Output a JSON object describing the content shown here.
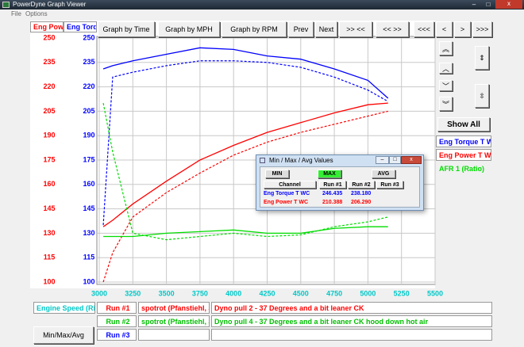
{
  "window": {
    "title": "PowerDyne Graph Viewer",
    "menu": [
      "File",
      "Options"
    ]
  },
  "toolbar": [
    "Graph by Time",
    "Graph by MPH",
    "Graph by RPM",
    "Prev",
    "Next",
    ">> <<",
    "<< >>",
    "<<<",
    "<",
    ">",
    ">>>"
  ],
  "axis_headers": [
    {
      "label": "Eng Powe",
      "color": "#ff0000"
    },
    {
      "label": "Eng Torq",
      "color": "#0000ff"
    }
  ],
  "chart_data": {
    "type": "line",
    "x": [
      3030,
      3100,
      3250,
      3500,
      3750,
      4000,
      4250,
      4500,
      4750,
      5000,
      5150
    ],
    "xlim": [
      3000,
      5500
    ],
    "xticks": [
      3000,
      3250,
      3500,
      3750,
      4000,
      4250,
      4500,
      4750,
      5000,
      5250,
      5500
    ],
    "ylim": [
      100,
      250
    ],
    "yticks": [
      100,
      115,
      130,
      145,
      160,
      175,
      190,
      205,
      220,
      235,
      250
    ],
    "y2lim": [
      100,
      250
    ],
    "y2ticks": [
      100,
      115,
      130,
      145,
      160,
      175,
      190,
      205,
      220,
      235,
      250
    ],
    "grid": true,
    "series": [
      {
        "name": "Eng Torque T WC",
        "color": "#0000ff",
        "axis": "y2",
        "runs": [
          {
            "values": [
              231,
              233,
              236,
              240,
              244,
              243,
              239,
              237,
              231,
              224,
              213
            ],
            "dashed": false
          },
          {
            "values": [
              135,
              226,
              229,
              233,
              236,
              236,
              235,
              232,
              226,
              218,
              211
            ],
            "dashed": true
          }
        ]
      },
      {
        "name": "Eng Power T WC",
        "color": "#ff0000",
        "runs": [
          {
            "values": [
              134,
              138,
              148,
              162,
              175,
              184,
              192,
              198,
              204,
              209,
              210
            ],
            "dashed": false
          },
          {
            "values": [
              100,
              118,
              140,
              155,
              167,
              178,
              186,
              192,
              197,
              202,
              205
            ],
            "dashed": true
          }
        ]
      },
      {
        "name": "AFR 1 (Ratio)",
        "color": "#00dd00",
        "runs": [
          {
            "values": [
              128,
              128,
              128,
              130,
              131,
              132,
              130,
              130,
              133,
              134,
              134
            ],
            "dashed": false
          },
          {
            "values": [
              210,
              180,
              130,
              126,
              128,
              130,
              128,
              129,
              134,
              137,
              140
            ],
            "dashed": true
          }
        ]
      }
    ]
  },
  "show_all": "Show All",
  "x_channel": "Engine Speed (Ri",
  "runs": [
    {
      "label": "Run #1",
      "color": "#ff0000",
      "vehicle": "spotrot (Pfanstiehl, J",
      "note": "Dyno pull 2 - 37 Degrees and a bit leaner CK"
    },
    {
      "label": "Run #2",
      "color": "#00c000",
      "vehicle": "spotrot (Pfanstiehl, J",
      "note": "Dyno pull 4 - 37 Degrees and a bit leaner CK hood down hot air"
    },
    {
      "label": "Run #3",
      "color": "#0000ff"
    }
  ],
  "min_max_avg_button": "Min/Max/Avg",
  "dialog": {
    "title": "Min / Max / Avg Values",
    "modes": [
      "MIN",
      "MAX",
      "AVG"
    ],
    "headers": [
      "Channel",
      "Run #1",
      "Run #2",
      "Run #3"
    ],
    "rows": [
      {
        "channel": "Eng Torque T WC",
        "color": "#0000ff",
        "run1": "246.435",
        "run2": "238.180"
      },
      {
        "channel": "Eng Power T WC",
        "color": "#ff0000",
        "run1": "210.388",
        "run2": "206.290"
      }
    ]
  }
}
